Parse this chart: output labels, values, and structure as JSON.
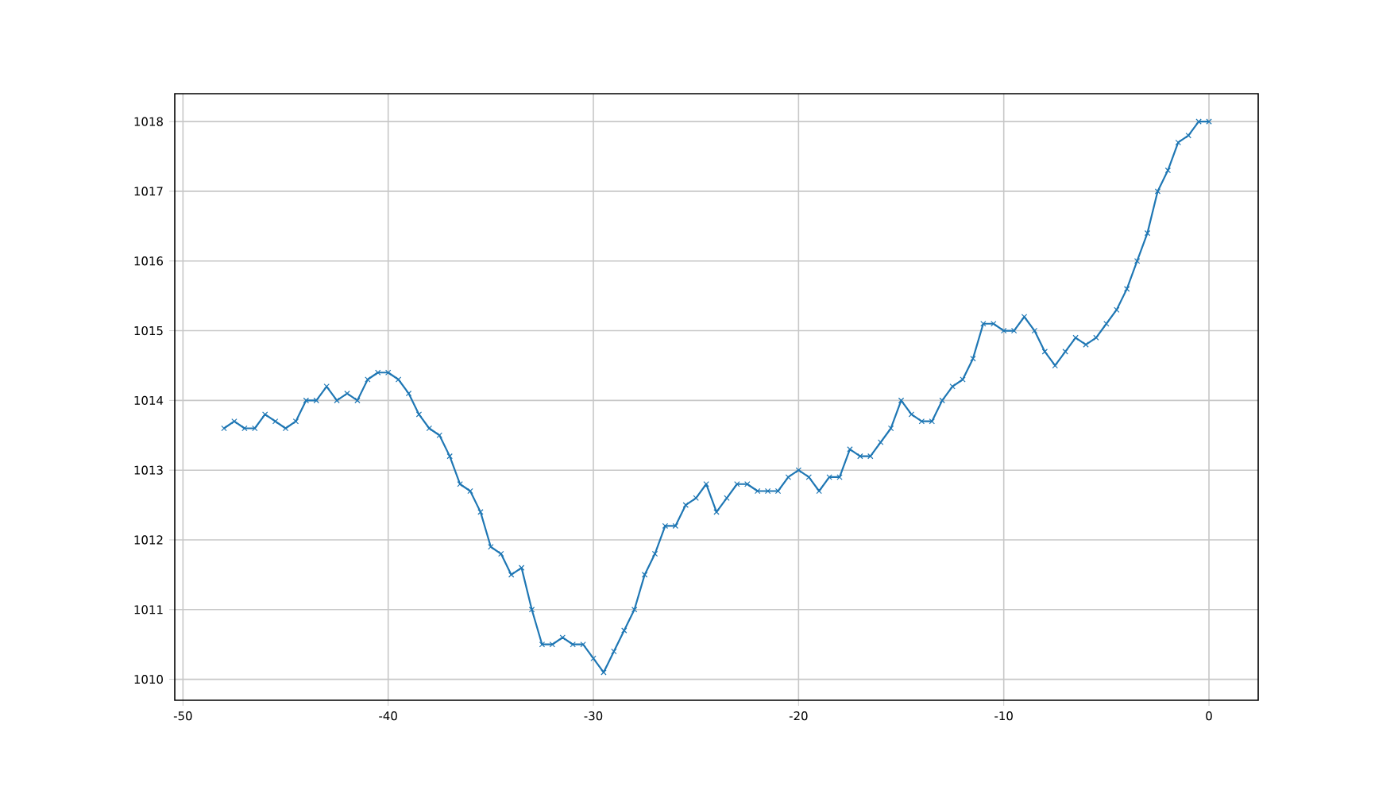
{
  "chart_data": {
    "type": "line",
    "color": "#1f77b4",
    "marker": "cross",
    "grid": true,
    "x": [
      -48,
      -47.5,
      -47,
      -46.5,
      -46,
      -45.5,
      -45,
      -44.5,
      -44,
      -43.5,
      -43,
      -42.5,
      -42,
      -41.5,
      -41,
      -40.5,
      -40,
      -39.5,
      -39,
      -38.5,
      -38,
      -37.5,
      -37,
      -36.5,
      -36,
      -35.5,
      -35,
      -34.5,
      -34,
      -33.5,
      -33,
      -32.5,
      -32,
      -31.5,
      -31,
      -30.5,
      -30,
      -29.5,
      -29,
      -28.5,
      -28,
      -27.5,
      -27,
      -26.5,
      -26,
      -25.5,
      -25,
      -24.5,
      -24,
      -23.5,
      -23,
      -22.5,
      -22,
      -21.5,
      -21,
      -20.5,
      -20,
      -19.5,
      -19,
      -18.5,
      -18,
      -17.5,
      -17,
      -16.5,
      -16,
      -15.5,
      -15,
      -14.5,
      -14,
      -13.5,
      -13,
      -12.5,
      -12,
      -11.5,
      -11,
      -10.5,
      -10,
      -9.5,
      -9,
      -8.5,
      -8,
      -7.5,
      -7,
      -6.5,
      -6,
      -5.5,
      -5,
      -4.5,
      -4,
      -3.5,
      -3,
      -2.5,
      -2,
      -1.5,
      -1,
      -0.5,
      0
    ],
    "values": [
      1013.6,
      1013.7,
      1013.6,
      1013.6,
      1013.8,
      1013.7,
      1013.6,
      1013.7,
      1014.0,
      1014.0,
      1014.2,
      1014.0,
      1014.1,
      1014.0,
      1014.3,
      1014.4,
      1014.4,
      1014.3,
      1014.1,
      1013.8,
      1013.6,
      1013.5,
      1013.2,
      1012.8,
      1012.7,
      1012.4,
      1011.9,
      1011.8,
      1011.5,
      1011.6,
      1011.0,
      1010.5,
      1010.5,
      1010.6,
      1010.5,
      1010.5,
      1010.3,
      1010.1,
      1010.4,
      1010.7,
      1011.0,
      1011.5,
      1011.8,
      1012.2,
      1012.2,
      1012.5,
      1012.6,
      1012.8,
      1012.4,
      1012.6,
      1012.8,
      1012.8,
      1012.7,
      1012.7,
      1012.7,
      1012.9,
      1013.0,
      1012.9,
      1012.7,
      1012.9,
      1012.9,
      1013.3,
      1013.2,
      1013.2,
      1013.4,
      1013.6,
      1014.0,
      1013.8,
      1013.7,
      1013.7,
      1014.0,
      1014.2,
      1014.3,
      1014.6,
      1015.1,
      1015.1,
      1015.0,
      1015.0,
      1015.2,
      1015.0,
      1014.7,
      1014.5,
      1014.7,
      1014.9,
      1014.8,
      1014.9,
      1015.1,
      1015.3,
      1015.6,
      1016.0,
      1016.4,
      1017.0,
      1017.3,
      1017.7,
      1017.8,
      1018.0,
      1018.0
    ],
    "xlim": [
      -50.4,
      2.4
    ],
    "ylim": [
      1009.7,
      1018.4
    ],
    "xticks": [
      -50,
      -40,
      -30,
      -20,
      -10,
      0
    ],
    "yticks": [
      1010,
      1011,
      1012,
      1013,
      1014,
      1015,
      1016,
      1017,
      1018
    ]
  }
}
